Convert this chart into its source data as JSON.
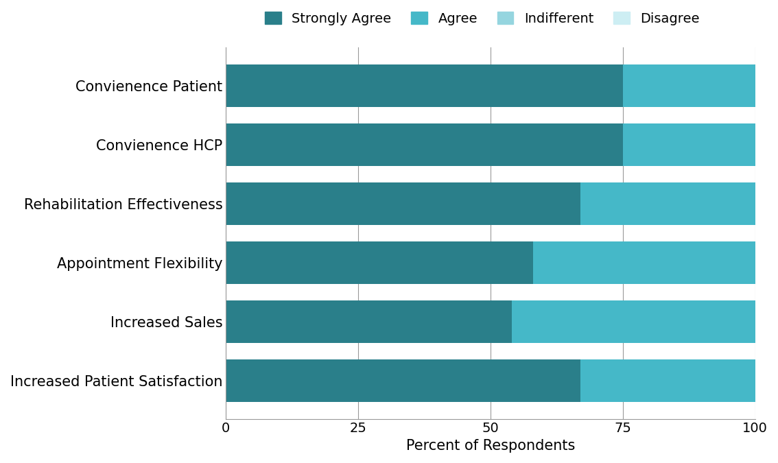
{
  "categories": [
    "Convienence Patient",
    "Convienence HCP",
    "Rehabilitation Effectiveness",
    "Appointment Flexibility",
    "Increased Sales",
    "Increased Patient Satisfaction"
  ],
  "series": {
    "Strongly Agree": [
      75,
      75,
      67,
      58,
      54,
      67
    ],
    "Agree": [
      25,
      25,
      33,
      42,
      46,
      33
    ],
    "Indifferent": [
      0,
      0,
      0,
      0,
      0,
      0
    ],
    "Disagree": [
      0,
      0,
      0,
      0,
      0,
      0
    ]
  },
  "colors": {
    "Strongly Agree": "#2a7f8a",
    "Agree": "#45b8c8",
    "Indifferent": "#95d5df",
    "Disagree": "#cdeef3"
  },
  "xlabel": "Percent of Respondents",
  "xlim": [
    0,
    100
  ],
  "xticks": [
    0,
    25,
    50,
    75,
    100
  ],
  "bar_height": 0.72,
  "background_color": "#ffffff",
  "grid_color": "#999999",
  "legend_order": [
    "Strongly Agree",
    "Agree",
    "Indifferent",
    "Disagree"
  ],
  "label_fontsize": 15,
  "tick_fontsize": 14,
  "legend_fontsize": 14
}
